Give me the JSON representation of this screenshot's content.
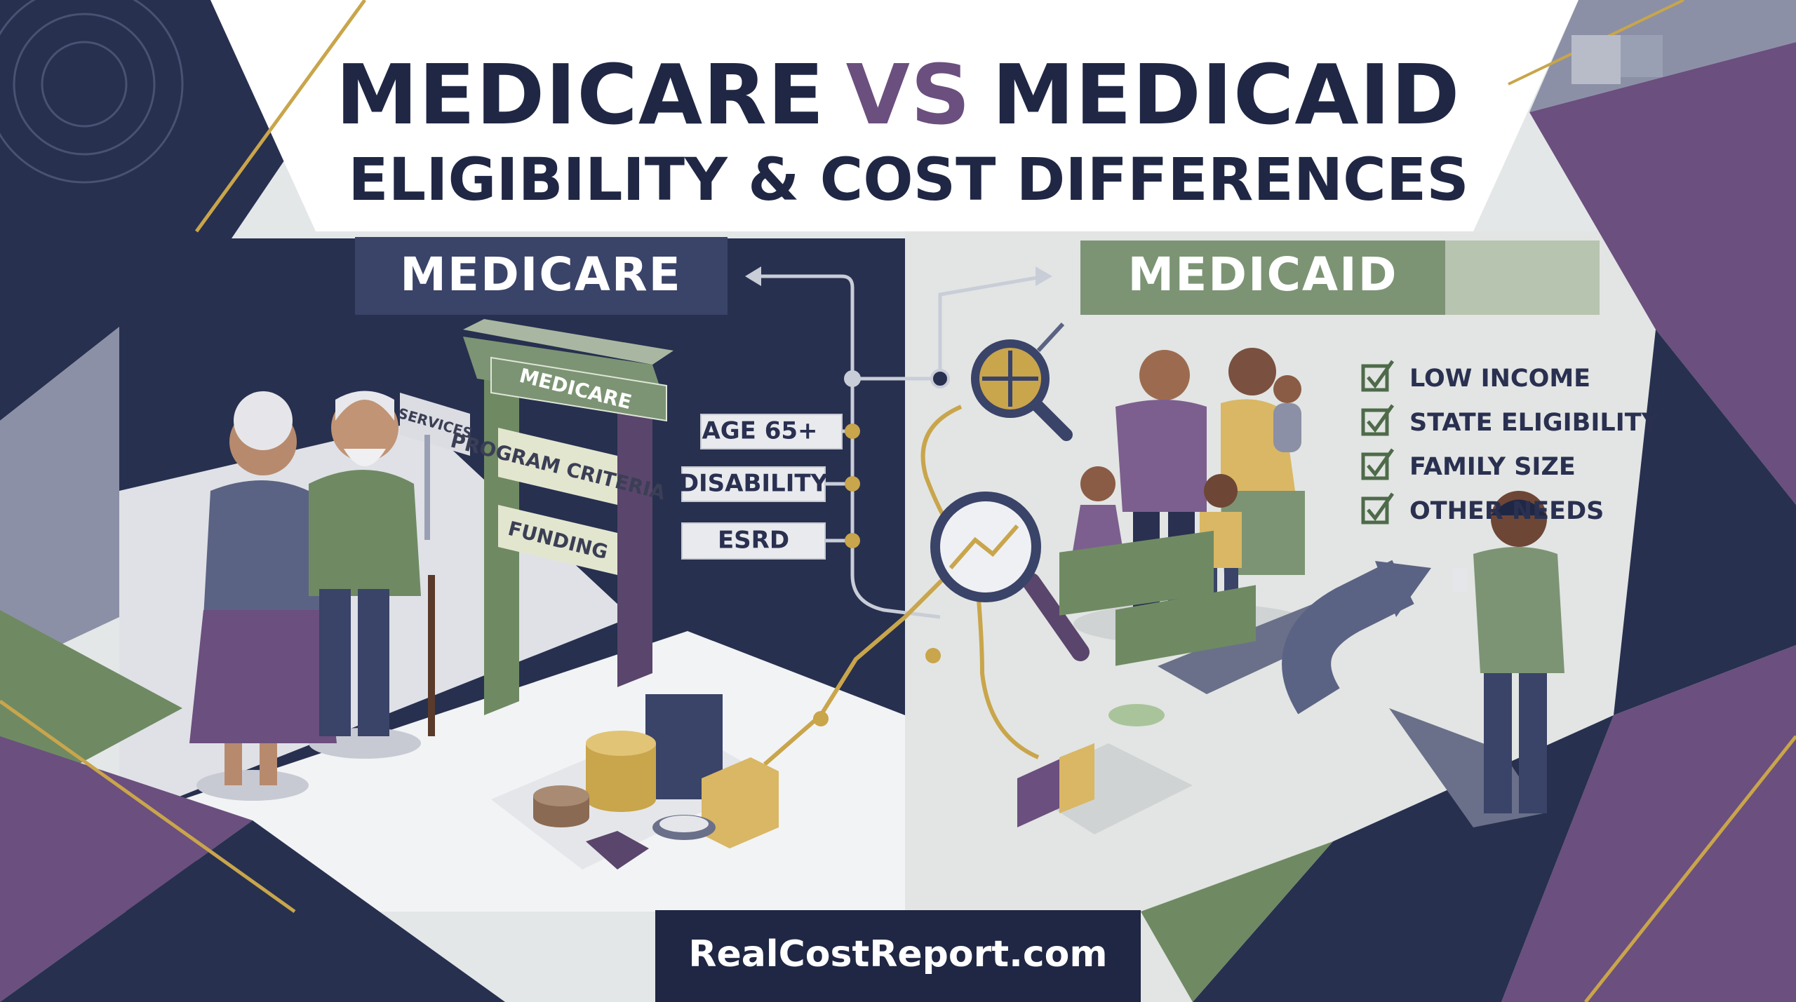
{
  "header": {
    "title": {
      "part1": "MEDICARE",
      "part2": "VS",
      "part3": "MEDICAID"
    },
    "subtitle": "ELIGIBILITY & COST DIFFERENCES"
  },
  "medicare": {
    "label": "MEDICARE",
    "gate_sign": "MEDICARE",
    "signs": [
      "SERVICES",
      "PROGRAM CRITERIA",
      "FUNDING"
    ],
    "criteria": [
      "AGE 65+",
      "DISABILITY",
      "ESRD"
    ]
  },
  "medicaid": {
    "label": "MEDICAID",
    "checklist": [
      "LOW INCOME",
      "STATE ELIGIBILITY",
      "FAMILY SIZE",
      "OTHER NEEDS"
    ]
  },
  "footer": "RealCostReport.com"
}
